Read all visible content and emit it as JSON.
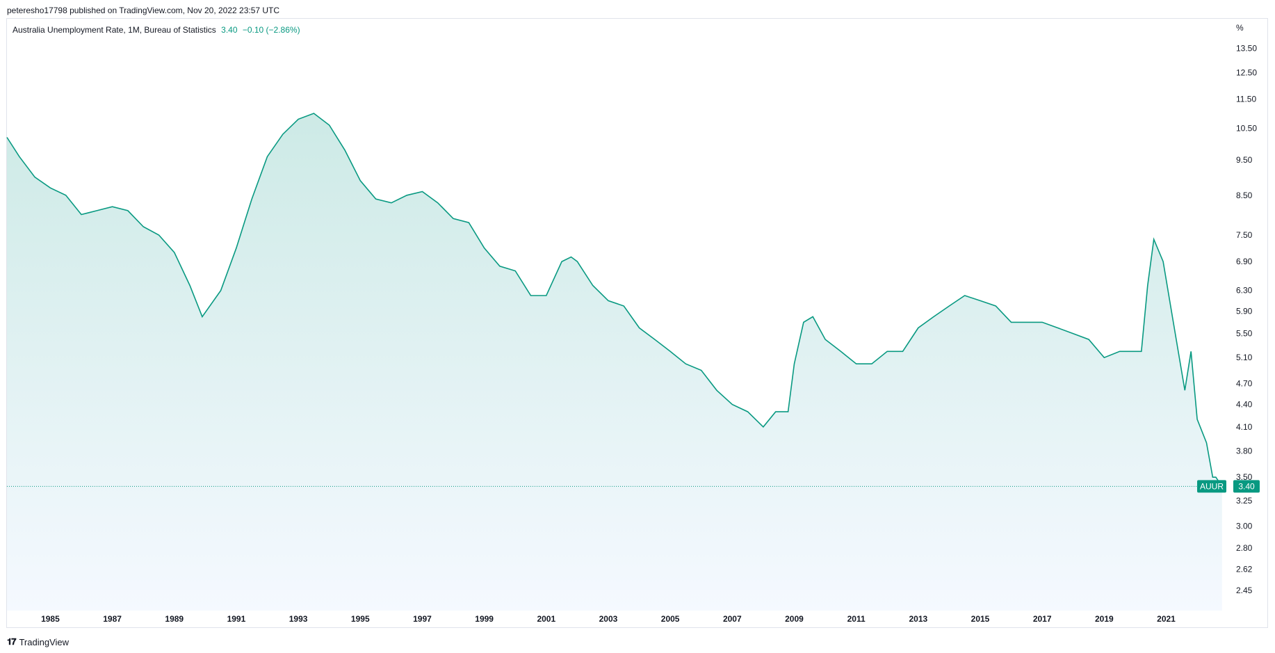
{
  "header": {
    "published": "peteresho17798 published on TradingView.com, Nov 20, 2022 23:57 UTC"
  },
  "legend": {
    "title": "Australia Unemployment Rate, 1M, Bureau of Statistics",
    "value": "3.40",
    "change": "−0.10 (−2.86%)"
  },
  "footer": {
    "brand": "TradingView"
  },
  "colors": {
    "line": "#089981",
    "label_bg": "#089981",
    "fill_top": "#cdeae6",
    "fill_bottom": "#f5f9ff"
  },
  "chart_data": {
    "type": "area",
    "title": "Australia Unemployment Rate, 1M, Bureau of Statistics",
    "y_unit": "%",
    "y_scale": "log",
    "ylim": [
      2.3,
      14.4
    ],
    "xlim": [
      1983.6,
      2022.85
    ],
    "y_ticks": [
      13.5,
      12.5,
      11.5,
      10.5,
      9.5,
      8.5,
      7.5,
      6.9,
      6.3,
      5.9,
      5.5,
      5.1,
      4.7,
      4.4,
      4.1,
      3.8,
      3.5,
      3.25,
      3.0,
      2.8,
      2.62,
      2.45
    ],
    "y_tick_labels": [
      "13.50",
      "12.50",
      "11.50",
      "10.50",
      "9.50",
      "8.50",
      "7.50",
      "6.90",
      "6.30",
      "5.90",
      "5.50",
      "5.10",
      "4.70",
      "4.40",
      "4.10",
      "3.80",
      "3.50",
      "3.25",
      "3.00",
      "2.80",
      "2.62",
      "2.45"
    ],
    "x_ticks": [
      1985,
      1987,
      1989,
      1991,
      1993,
      1995,
      1997,
      1999,
      2001,
      2003,
      2005,
      2007,
      2009,
      2011,
      2013,
      2015,
      2017,
      2019,
      2021
    ],
    "x_tick_labels": [
      "1985",
      "1987",
      "1989",
      "1991",
      "1993",
      "1995",
      "1997",
      "1999",
      "2001",
      "2003",
      "2005",
      "2007",
      "2009",
      "2011",
      "2013",
      "2015",
      "2017",
      "2019",
      "2021"
    ],
    "series": [
      {
        "symbol": "AUUR",
        "last_value": 3.4,
        "last_label": "3.40",
        "x": [
          1983.6,
          1984.0,
          1984.5,
          1985.0,
          1985.5,
          1986.0,
          1986.5,
          1987.0,
          1987.5,
          1988.0,
          1988.5,
          1989.0,
          1989.5,
          1989.9,
          1990.5,
          1991.0,
          1991.3,
          1991.5,
          1992.0,
          1992.5,
          1993.0,
          1993.5,
          1994.0,
          1994.5,
          1995.0,
          1995.5,
          1996.0,
          1996.5,
          1997.0,
          1997.5,
          1998.0,
          1998.5,
          1999.0,
          1999.5,
          2000.0,
          2000.5,
          2001.0,
          2001.5,
          2001.8,
          2002.0,
          2002.5,
          2003.0,
          2003.5,
          2004.0,
          2004.5,
          2005.0,
          2005.5,
          2006.0,
          2006.5,
          2007.0,
          2007.5,
          2008.0,
          2008.4,
          2008.8,
          2009.0,
          2009.3,
          2009.6,
          2010.0,
          2010.5,
          2011.0,
          2011.5,
          2012.0,
          2012.5,
          2013.0,
          2013.5,
          2014.0,
          2014.5,
          2015.0,
          2015.5,
          2016.0,
          2016.5,
          2017.0,
          2017.5,
          2018.0,
          2018.5,
          2019.0,
          2019.5,
          2020.0,
          2020.2,
          2020.4,
          2020.6,
          2020.9,
          2021.2,
          2021.6,
          2021.8,
          2022.0,
          2022.3,
          2022.5,
          2022.6,
          2022.8
        ],
        "y": [
          10.2,
          9.6,
          9.0,
          8.7,
          8.5,
          8.0,
          8.1,
          8.2,
          8.1,
          7.7,
          7.5,
          7.1,
          6.4,
          5.8,
          6.3,
          7.2,
          7.9,
          8.4,
          9.6,
          10.3,
          10.8,
          11.0,
          10.6,
          9.8,
          8.9,
          8.4,
          8.3,
          8.5,
          8.6,
          8.3,
          7.9,
          7.8,
          7.2,
          6.8,
          6.7,
          6.2,
          6.2,
          6.9,
          7.0,
          6.9,
          6.4,
          6.1,
          6.0,
          5.6,
          5.4,
          5.2,
          5.0,
          4.9,
          4.6,
          4.4,
          4.3,
          4.1,
          4.3,
          4.3,
          5.0,
          5.7,
          5.8,
          5.4,
          5.2,
          5.0,
          5.0,
          5.2,
          5.2,
          5.6,
          5.8,
          6.0,
          6.2,
          6.1,
          6.0,
          5.7,
          5.7,
          5.7,
          5.6,
          5.5,
          5.4,
          5.1,
          5.2,
          5.2,
          5.2,
          6.4,
          7.4,
          6.9,
          5.8,
          4.6,
          5.2,
          4.2,
          3.9,
          3.5,
          3.5,
          3.4
        ]
      }
    ]
  }
}
